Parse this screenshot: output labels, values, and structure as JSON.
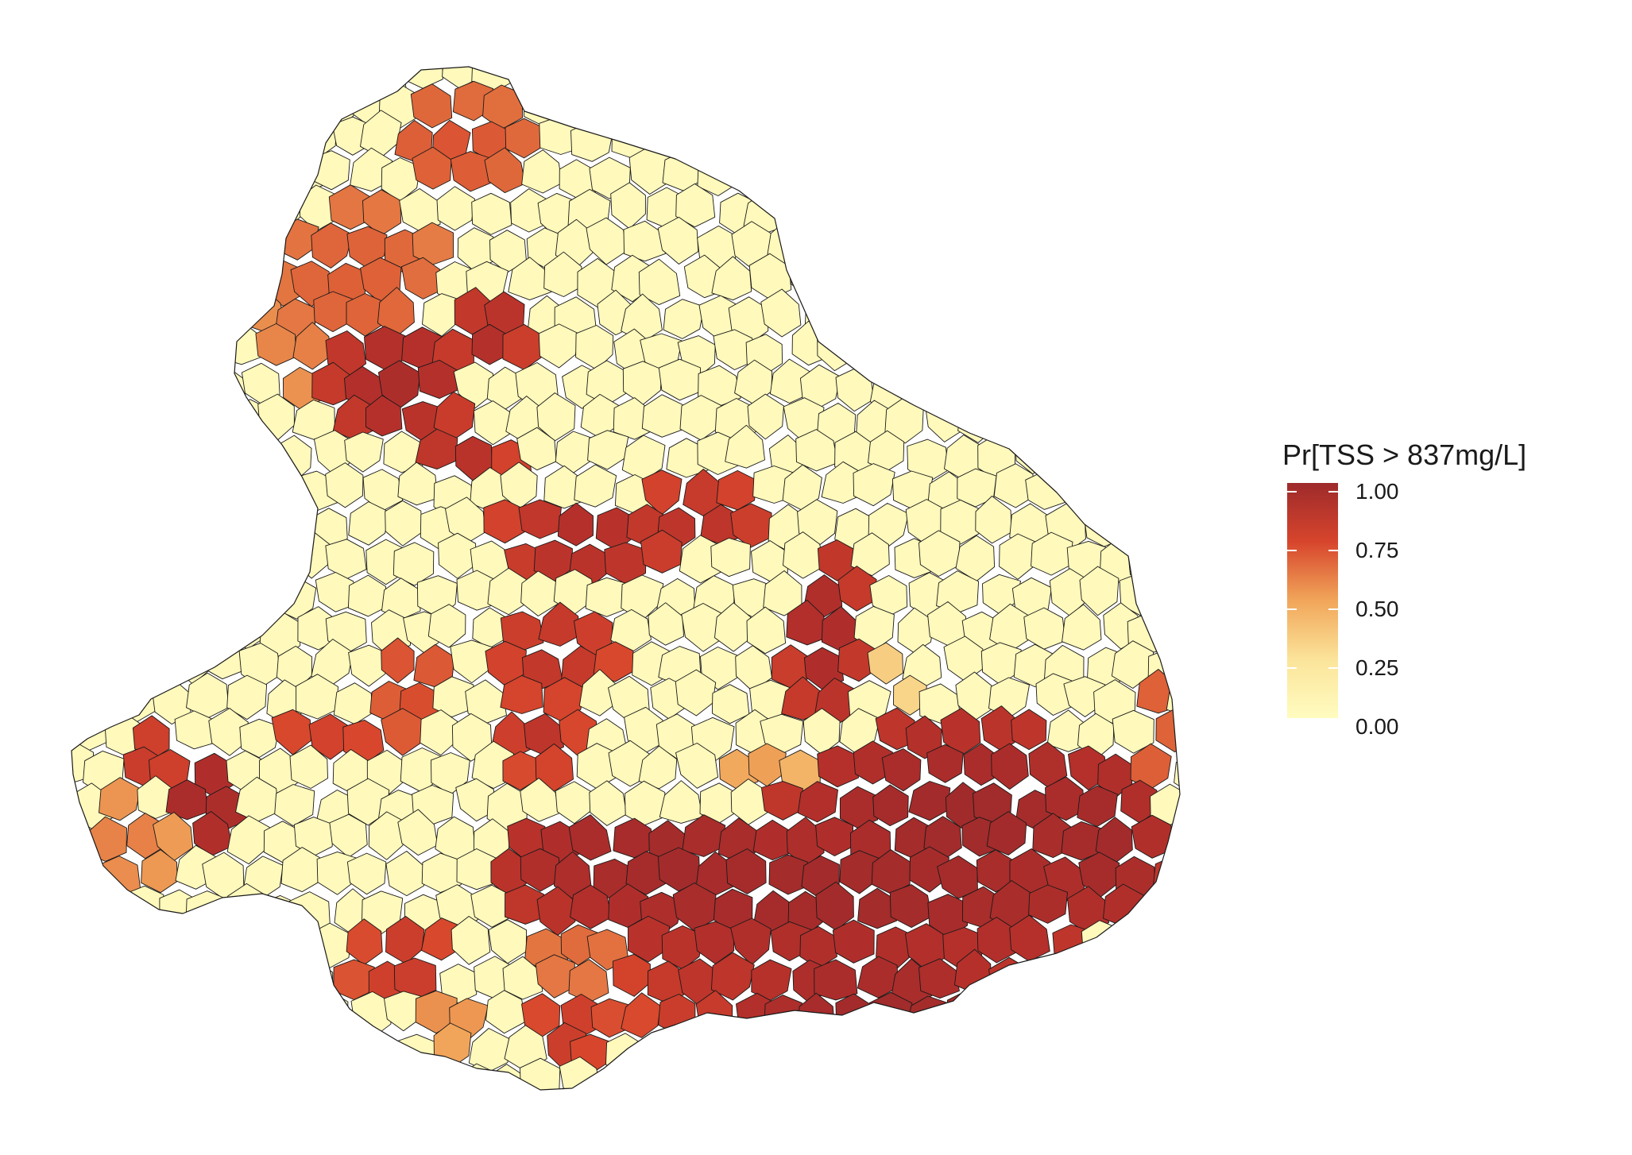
{
  "legend": {
    "title": "Pr[TSS > 837mg/L]",
    "ticks": [
      {
        "label": "1.00",
        "value": 1.0
      },
      {
        "label": "0.75",
        "value": 0.75
      },
      {
        "label": "0.50",
        "value": 0.5
      },
      {
        "label": "0.25",
        "value": 0.25
      },
      {
        "label": "0.00",
        "value": 0.0
      }
    ],
    "color_stops": [
      "#fffcc0",
      "#fbe49a",
      "#f1a65a",
      "#e06a3c",
      "#d7452c",
      "#b5302b",
      "#9e2a2b"
    ]
  },
  "map": {
    "type": "choropleth",
    "variable": "Pr[TSS > 837mg/L]",
    "value_range": [
      0,
      1
    ]
  }
}
